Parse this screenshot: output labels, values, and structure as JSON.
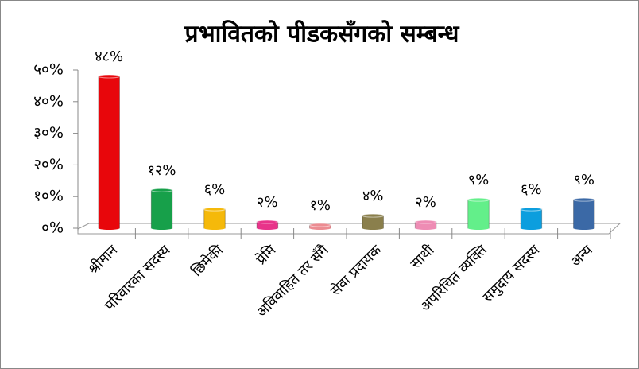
{
  "chart_data": {
    "type": "bar",
    "title": "प्रभावितको पीडकसँगको सम्बन्ध",
    "categories": [
      "श्रीमान",
      "परिवारका सदस्य",
      "छिमेकी",
      "प्रेमि",
      "अविवाहित तर सँगै",
      "सेवा प्रदायक",
      "साथी",
      "अपरिचित व्यक्ति",
      "समुदाय सदस्य",
      "अन्य"
    ],
    "values": [
      48,
      12,
      6,
      2,
      1,
      4,
      2,
      9,
      6,
      9
    ],
    "value_labels": [
      "४८%",
      "१२%",
      "६%",
      "२%",
      "१%",
      "४%",
      "२%",
      "९%",
      "६%",
      "९%"
    ],
    "colors": [
      "#e8060b",
      "#17a04a",
      "#f5b90a",
      "#e8348a",
      "#ec8c92",
      "#8a7f4c",
      "#ee8cb4",
      "#63ef8a",
      "#0c9ede",
      "#3b69a6"
    ],
    "ylim": [
      0,
      50
    ],
    "yticks": [
      {
        "value": 0,
        "label": "०%"
      },
      {
        "value": 10,
        "label": "१०%"
      },
      {
        "value": 20,
        "label": "२०%"
      },
      {
        "value": 30,
        "label": "३०%"
      },
      {
        "value": 40,
        "label": "४०%"
      },
      {
        "value": 50,
        "label": "५०%"
      }
    ]
  }
}
